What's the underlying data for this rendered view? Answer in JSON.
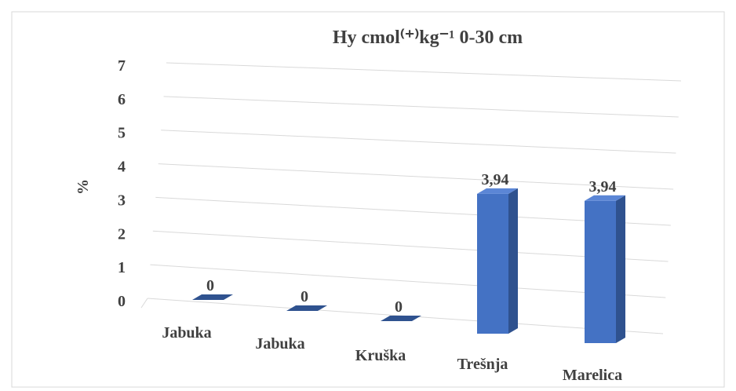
{
  "chart_data": {
    "type": "bar3d",
    "title": "Hy cmol⁽⁺⁾kg⁻¹ 0-30 cm",
    "y_label": "%",
    "categories": [
      "Jabuka",
      "Jabuka",
      "Kruška",
      "Trešnja",
      "Marelica"
    ],
    "values": [
      0,
      0,
      0,
      3.94,
      3.94
    ],
    "value_labels": [
      "0",
      "0",
      "0",
      "3,94",
      "3,94"
    ],
    "color": "#4472c4",
    "ylim": [
      0,
      7
    ],
    "yticks": [
      0,
      1,
      2,
      3,
      4,
      5,
      6,
      7
    ],
    "grid": true
  }
}
